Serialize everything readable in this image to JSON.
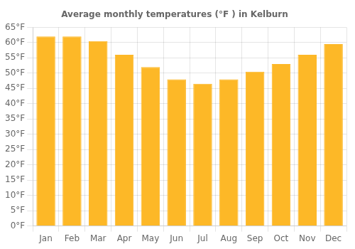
{
  "chart_data": {
    "type": "bar",
    "title": "Average monthly temperatures (°F ) in Kelburn",
    "categories": [
      "Jan",
      "Feb",
      "Mar",
      "Apr",
      "May",
      "Jun",
      "Jul",
      "Aug",
      "Sep",
      "Oct",
      "Nov",
      "Dec"
    ],
    "values": [
      62.0,
      62.0,
      60.5,
      56.0,
      52.0,
      48.0,
      46.5,
      48.0,
      50.5,
      53.0,
      56.0,
      59.5
    ],
    "color": "#FDB827",
    "ylim": [
      0,
      65
    ],
    "yticks": [
      {
        "value": 0,
        "label": "0°F"
      },
      {
        "value": 5,
        "label": "5°F"
      },
      {
        "value": 10,
        "label": "10°F"
      },
      {
        "value": 15,
        "label": "15°F"
      },
      {
        "value": 20,
        "label": "20°F"
      },
      {
        "value": 25,
        "label": "25°F"
      },
      {
        "value": 30,
        "label": "30°F"
      },
      {
        "value": 35,
        "label": "35°F"
      },
      {
        "value": 40,
        "label": "40°F"
      },
      {
        "value": 45,
        "label": "45°F"
      },
      {
        "value": 50,
        "label": "50°F"
      },
      {
        "value": 55,
        "label": "55°F"
      },
      {
        "value": 60,
        "label": "60°F"
      },
      {
        "value": 65,
        "label": "65°F"
      }
    ],
    "grid": true
  }
}
